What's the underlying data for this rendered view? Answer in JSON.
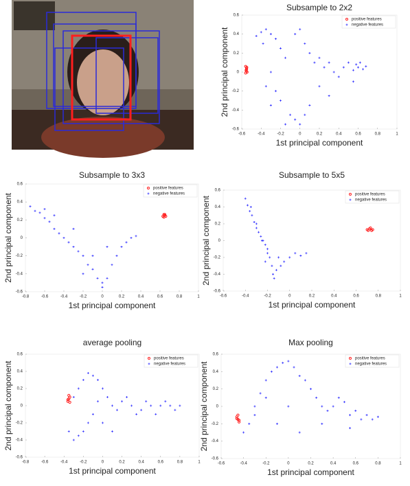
{
  "chart_data": [
    {
      "type": "scatter",
      "title": "Subsample to 2x2",
      "x_label": "1st principal component",
      "y_label": "2nd principal component",
      "xlim": [
        -0.6,
        1
      ],
      "ylim": [
        -0.6,
        0.6
      ],
      "xticks": [
        -0.6,
        -0.4,
        -0.2,
        0,
        0.2,
        0.4,
        0.6,
        0.8,
        1
      ],
      "yticks": [
        -0.6,
        -0.4,
        -0.2,
        0,
        0.2,
        0.4,
        0.6
      ],
      "legend": "upper right",
      "series": [
        {
          "name": "positive features",
          "color": "#ff2020",
          "marker": "circle",
          "x": [
            -0.56,
            -0.55,
            -0.555,
            -0.545,
            -0.56,
            -0.55,
            -0.548,
            -0.552
          ],
          "y": [
            0.06,
            0.04,
            0.02,
            0.0,
            -0.01,
            0.03,
            0.05,
            0.01
          ]
        },
        {
          "name": "negative features",
          "color": "#3030ff",
          "marker": "plus",
          "x": [
            -0.45,
            -0.4,
            -0.35,
            -0.3,
            -0.25,
            -0.38,
            -0.2,
            -0.15,
            -0.05,
            0.0,
            0.05,
            0.1,
            0.15,
            0.2,
            0.25,
            0.3,
            0.35,
            0.4,
            0.45,
            0.5,
            0.55,
            0.58,
            0.6,
            0.62,
            0.65,
            0.68,
            0.55,
            -0.3,
            -0.25,
            -0.2,
            -0.1,
            -0.05,
            0.0,
            0.05,
            0.1,
            -0.15,
            -0.35,
            -0.3,
            0.2,
            0.3
          ],
          "y": [
            0.38,
            0.42,
            0.45,
            0.4,
            0.35,
            0.3,
            0.25,
            0.15,
            0.4,
            0.45,
            0.3,
            0.2,
            0.1,
            0.15,
            0.05,
            0.1,
            0.0,
            -0.05,
            0.05,
            0.1,
            0.02,
            0.08,
            0.05,
            0.1,
            0.03,
            0.06,
            -0.1,
            0.0,
            -0.2,
            -0.3,
            -0.45,
            -0.5,
            -0.55,
            -0.45,
            -0.35,
            -0.55,
            -0.15,
            -0.35,
            -0.15,
            -0.25
          ]
        }
      ]
    },
    {
      "type": "scatter",
      "title": "Subsample to 3x3",
      "x_label": "1st principal component",
      "y_label": "2nd principal component",
      "xlim": [
        -0.8,
        1
      ],
      "ylim": [
        -0.6,
        0.6
      ],
      "xticks": [
        -0.8,
        -0.6,
        -0.4,
        -0.2,
        0,
        0.2,
        0.4,
        0.6,
        0.8,
        1
      ],
      "yticks": [
        -0.6,
        -0.4,
        -0.2,
        0,
        0.2,
        0.4,
        0.6
      ],
      "legend": "upper right",
      "series": [
        {
          "name": "positive features",
          "color": "#ff2020",
          "marker": "circle",
          "x": [
            0.63,
            0.64,
            0.65,
            0.66,
            0.64,
            0.65
          ],
          "y": [
            0.24,
            0.26,
            0.25,
            0.24,
            0.23,
            0.26
          ]
        },
        {
          "name": "negative features",
          "color": "#3030ff",
          "marker": "plus",
          "x": [
            -0.75,
            -0.7,
            -0.65,
            -0.6,
            -0.55,
            -0.5,
            -0.45,
            -0.4,
            -0.35,
            -0.3,
            -0.25,
            -0.2,
            -0.15,
            -0.1,
            -0.05,
            0.0,
            0.05,
            0.1,
            0.15,
            0.2,
            0.25,
            0.3,
            0.35,
            -0.6,
            -0.5,
            -0.3,
            -0.1,
            0.0,
            0.05,
            -0.2
          ],
          "y": [
            0.35,
            0.3,
            0.28,
            0.22,
            0.18,
            0.1,
            0.05,
            0.0,
            -0.05,
            -0.1,
            -0.15,
            -0.2,
            -0.3,
            -0.35,
            -0.45,
            -0.5,
            -0.45,
            -0.3,
            -0.2,
            -0.1,
            -0.05,
            0.0,
            0.02,
            0.32,
            0.25,
            0.1,
            -0.2,
            -0.55,
            -0.1,
            -0.4
          ]
        }
      ]
    },
    {
      "type": "scatter",
      "title": "Subsample to 5x5",
      "x_label": "1st principal component",
      "y_label": "2nd principal component",
      "xlim": [
        -0.6,
        1
      ],
      "ylim": [
        -0.6,
        0.6
      ],
      "xticks": [
        -0.6,
        -0.4,
        -0.2,
        0,
        0.2,
        0.4,
        0.6,
        0.8,
        1
      ],
      "yticks": [
        -0.6,
        -0.4,
        -0.2,
        0,
        0.2,
        0.4,
        0.6
      ],
      "legend": "upper right",
      "series": [
        {
          "name": "positive features",
          "color": "#ff2020",
          "marker": "circle",
          "x": [
            0.7,
            0.72,
            0.74,
            0.71,
            0.73,
            0.75
          ],
          "y": [
            0.13,
            0.14,
            0.12,
            0.12,
            0.15,
            0.13
          ]
        },
        {
          "name": "negative features",
          "color": "#3030ff",
          "marker": "plus",
          "x": [
            -0.4,
            -0.38,
            -0.36,
            -0.34,
            -0.32,
            -0.3,
            -0.28,
            -0.26,
            -0.24,
            -0.22,
            -0.2,
            -0.18,
            -0.16,
            -0.15,
            -0.14,
            -0.3,
            -0.25,
            -0.2,
            -0.1,
            -0.05,
            0.0,
            0.05,
            0.1,
            0.15,
            -0.12,
            -0.08,
            -0.35,
            -0.22
          ],
          "y": [
            0.5,
            0.42,
            0.35,
            0.3,
            0.22,
            0.15,
            0.1,
            0.05,
            0.0,
            -0.05,
            -0.1,
            -0.2,
            -0.3,
            -0.4,
            -0.45,
            0.2,
            0.0,
            -0.15,
            -0.2,
            -0.25,
            -0.2,
            -0.15,
            -0.18,
            -0.15,
            -0.35,
            -0.3,
            0.4,
            -0.25
          ]
        }
      ]
    },
    {
      "type": "scatter",
      "title": "average pooling",
      "x_label": "1st principal component",
      "y_label": "2nd principal component",
      "xlim": [
        -0.8,
        1
      ],
      "ylim": [
        -0.6,
        0.6
      ],
      "xticks": [
        -0.8,
        -0.6,
        -0.4,
        -0.2,
        0,
        0.2,
        0.4,
        0.6,
        0.8,
        1
      ],
      "yticks": [
        -0.6,
        -0.4,
        -0.2,
        0,
        0.2,
        0.4,
        0.6
      ],
      "legend": "upper right",
      "series": [
        {
          "name": "positive features",
          "color": "#ff2020",
          "marker": "circle",
          "x": [
            -0.36,
            -0.35,
            -0.34,
            -0.35,
            -0.36,
            -0.34
          ],
          "y": [
            0.05,
            0.08,
            0.1,
            0.12,
            0.07,
            0.04
          ]
        },
        {
          "name": "negative features",
          "color": "#3030ff",
          "marker": "plus",
          "x": [
            -0.35,
            -0.3,
            -0.25,
            -0.2,
            -0.15,
            -0.3,
            -0.25,
            -0.2,
            -0.15,
            -0.1,
            -0.05,
            0.0,
            0.05,
            0.1,
            0.15,
            0.2,
            0.25,
            0.3,
            0.35,
            0.4,
            0.45,
            0.5,
            0.55,
            0.6,
            0.65,
            0.7,
            0.75,
            0.8,
            -0.1,
            -0.05,
            0.0,
            0.1
          ],
          "y": [
            -0.3,
            -0.4,
            -0.35,
            -0.3,
            -0.2,
            0.1,
            0.2,
            0.3,
            0.38,
            0.35,
            0.3,
            0.2,
            0.1,
            0.0,
            -0.05,
            0.05,
            0.1,
            0.0,
            -0.1,
            -0.05,
            0.05,
            0.0,
            -0.1,
            0.0,
            0.05,
            0.0,
            -0.05,
            0.0,
            -0.1,
            0.05,
            -0.2,
            -0.3
          ]
        }
      ]
    },
    {
      "type": "scatter",
      "title": "Max pooling",
      "x_label": "1st principal component",
      "y_label": "2nd principal component",
      "xlim": [
        -0.6,
        1
      ],
      "ylim": [
        -0.6,
        0.6
      ],
      "xticks": [
        -0.6,
        -0.4,
        -0.2,
        0,
        0.2,
        0.4,
        0.6,
        0.8,
        1
      ],
      "yticks": [
        -0.6,
        -0.4,
        -0.2,
        0,
        0.2,
        0.4,
        0.6
      ],
      "legend": "upper right",
      "series": [
        {
          "name": "positive features",
          "color": "#ff2020",
          "marker": "circle",
          "x": [
            -0.46,
            -0.45,
            -0.44,
            -0.45,
            -0.46,
            -0.44
          ],
          "y": [
            -0.12,
            -0.15,
            -0.18,
            -0.1,
            -0.14,
            -0.16
          ]
        },
        {
          "name": "negative features",
          "color": "#3030ff",
          "marker": "plus",
          "x": [
            -0.4,
            -0.35,
            -0.3,
            -0.25,
            -0.2,
            -0.15,
            -0.1,
            -0.05,
            0.0,
            0.05,
            0.1,
            0.15,
            0.2,
            0.25,
            0.3,
            0.35,
            0.4,
            0.45,
            0.5,
            0.55,
            0.6,
            0.65,
            0.7,
            0.75,
            0.8,
            -0.3,
            -0.2,
            -0.1,
            0.0,
            0.1,
            0.3,
            0.55
          ],
          "y": [
            -0.3,
            -0.2,
            0.0,
            0.15,
            0.3,
            0.4,
            0.45,
            0.5,
            0.52,
            0.45,
            0.35,
            0.3,
            0.2,
            0.1,
            0.0,
            -0.05,
            0.0,
            0.1,
            0.05,
            -0.1,
            -0.05,
            -0.15,
            -0.1,
            -0.15,
            -0.12,
            -0.1,
            0.1,
            -0.2,
            0.0,
            -0.3,
            -0.2,
            -0.25
          ]
        }
      ]
    }
  ]
}
